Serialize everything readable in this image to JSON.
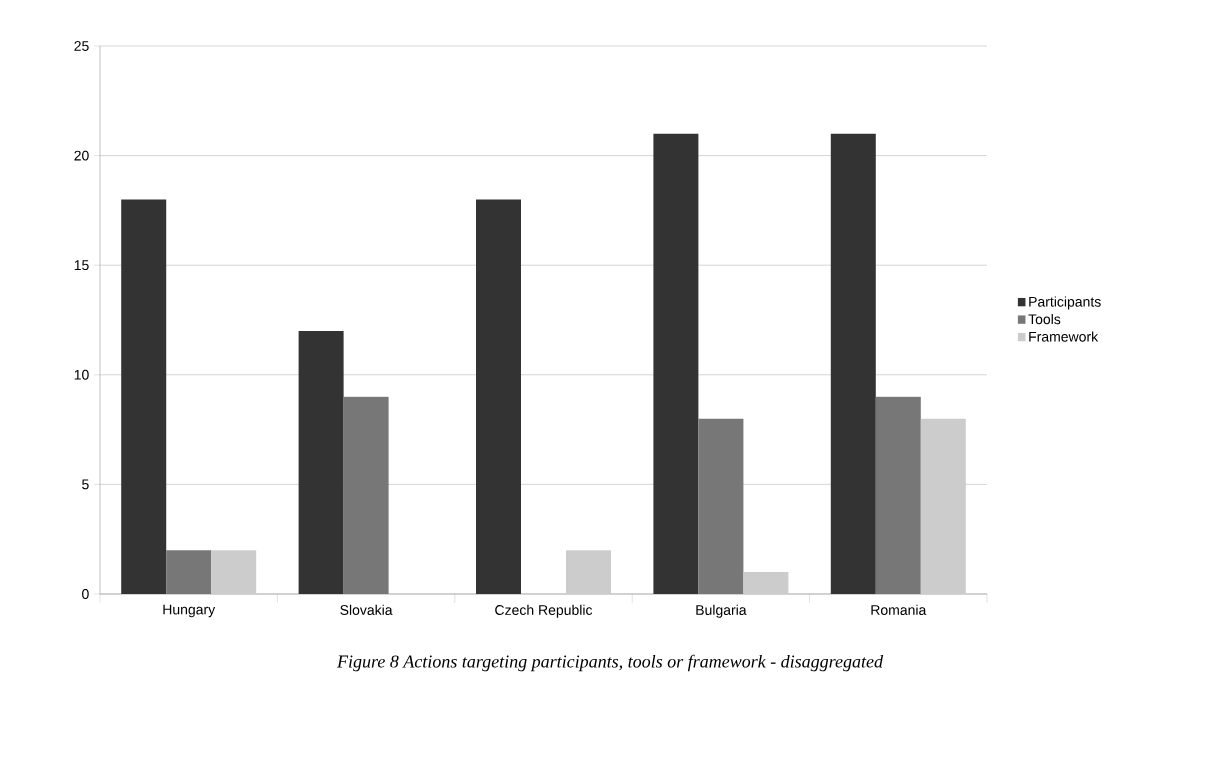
{
  "chart_data": {
    "type": "bar",
    "categories": [
      "Hungary",
      "Slovakia",
      "Czech Republic",
      "Bulgaria",
      "Romania"
    ],
    "series": [
      {
        "name": "Participants",
        "color": "#333333",
        "values": [
          18,
          12,
          18,
          21,
          21
        ]
      },
      {
        "name": "Tools",
        "color": "#777777",
        "values": [
          2,
          9,
          0,
          8,
          9
        ]
      },
      {
        "name": "Framework",
        "color": "#cccccc",
        "values": [
          2,
          0,
          2,
          1,
          8
        ]
      }
    ],
    "ylim": [
      0,
      25
    ],
    "yticks": [
      0,
      5,
      10,
      15,
      20,
      25
    ],
    "grid": "y",
    "legend": "right",
    "annotations": [
      "Figure 8 Actions targeting participants, tools or framework - disaggregated"
    ]
  }
}
